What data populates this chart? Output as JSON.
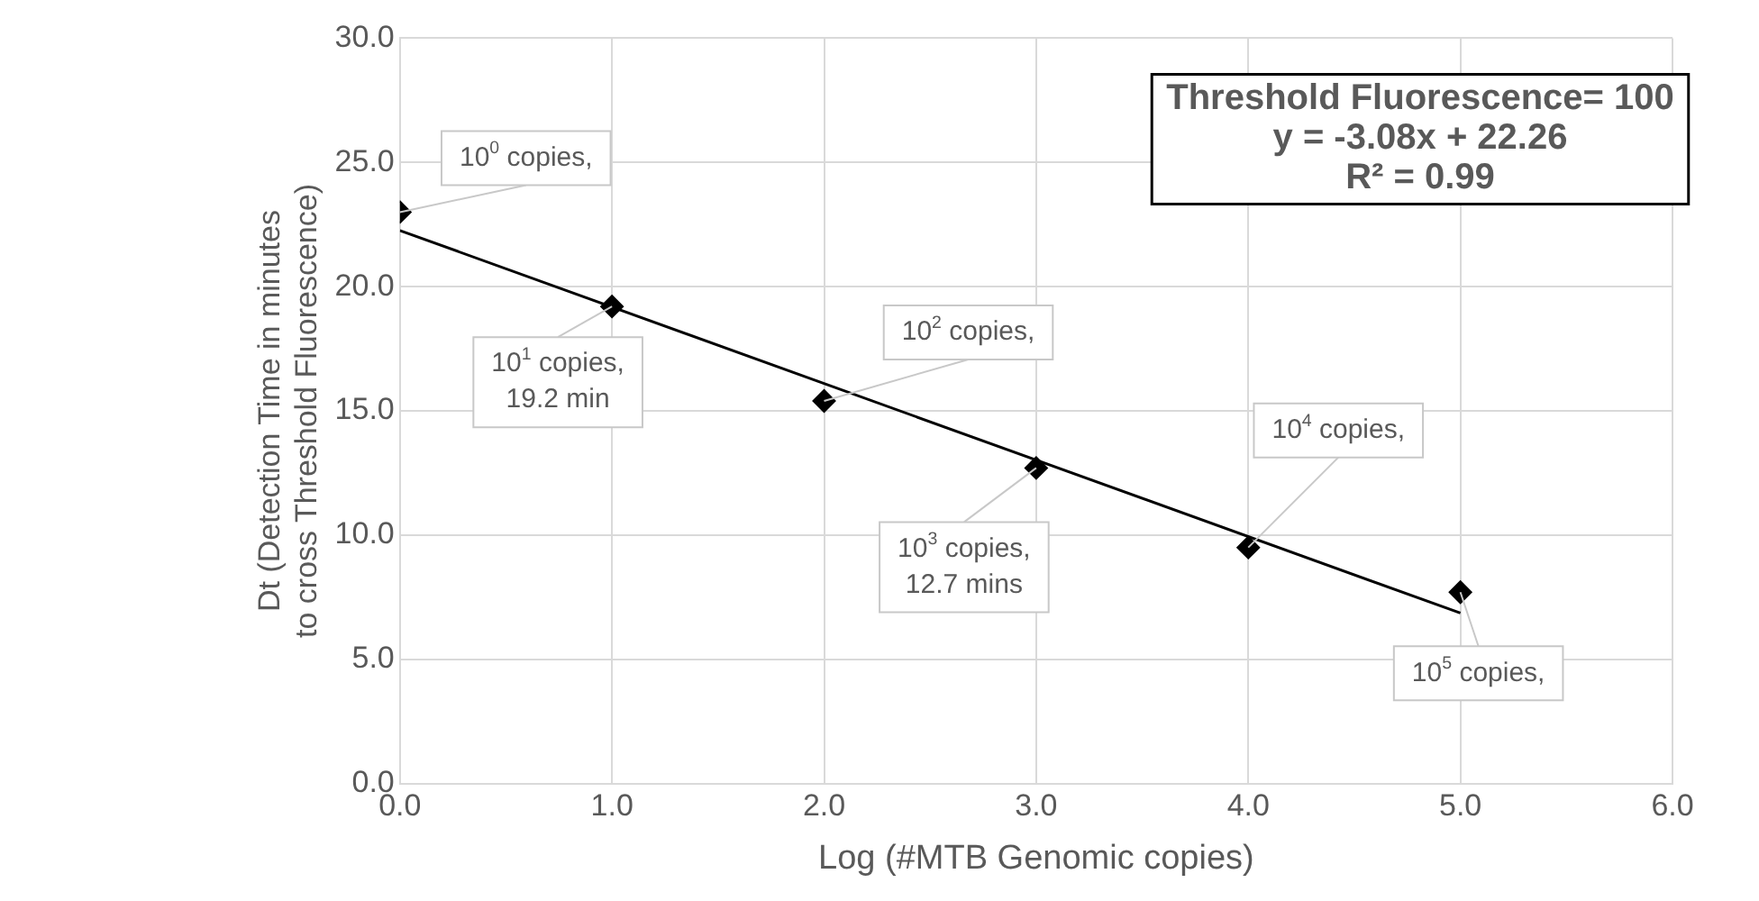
{
  "chart_data": {
    "type": "scatter",
    "xlabel": "Log (#MTB Genomic copies)",
    "ylabel": "Dt (Detection Time in minutes to cross Threshold Fluorescence)",
    "xlim": [
      0,
      6
    ],
    "xticks": [
      {
        "value": 0,
        "label": "0.0"
      },
      {
        "value": 1,
        "label": "1.0"
      },
      {
        "value": 2,
        "label": "2.0"
      },
      {
        "value": 3,
        "label": "3.0"
      },
      {
        "value": 4,
        "label": "4.0"
      },
      {
        "value": 5,
        "label": "5.0"
      },
      {
        "value": 6,
        "label": "6.0"
      }
    ],
    "ylim": [
      0,
      30
    ],
    "yticks": [
      {
        "value": 0,
        "label": "0.0"
      },
      {
        "value": 5,
        "label": "5.0"
      },
      {
        "value": 10,
        "label": "10.0"
      },
      {
        "value": 15,
        "label": "15.0"
      },
      {
        "value": 20,
        "label": "20.0"
      },
      {
        "value": 25,
        "label": "25.0"
      },
      {
        "value": 30,
        "label": "30.0"
      }
    ],
    "grid": true,
    "legend": false,
    "series": [
      {
        "type": "scatter",
        "color": "#000000",
        "marker": "diamond",
        "x": [
          0,
          1,
          2,
          3,
          4,
          5
        ],
        "values": [
          23.0,
          19.2,
          15.4,
          12.7,
          9.5,
          7.7
        ]
      },
      {
        "type": "line",
        "color": "#000000",
        "marker": "none",
        "line_style": "solid",
        "x": [
          0,
          5
        ],
        "values": [
          22.26,
          6.86
        ]
      }
    ],
    "annotations": [
      {
        "text": "10$^{0}$ copies,",
        "x": 0,
        "y": 23.0
      },
      {
        "text": "10$^{1}$ copies, 19.2 min",
        "x": 1,
        "y": 19.2
      },
      {
        "text": "10$^{2}$ copies,",
        "x": 2,
        "y": 15.4
      },
      {
        "text": "10$^{3}$ copies, 12.7 mins",
        "x": 3,
        "y": 12.7
      },
      {
        "text": "10$^{4}$ copies,",
        "x": 4,
        "y": 9.5
      },
      {
        "text": "10$^{5}$ copies,",
        "x": 5,
        "y": 7.7
      },
      "Threshold Fluorescence= 100",
      "y = -3.08x + 22.26",
      "R² = 0.99"
    ]
  }
}
